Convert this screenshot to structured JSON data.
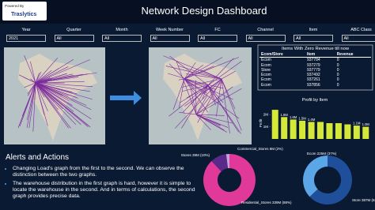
{
  "header": {
    "powered_by": "Powered By",
    "logo": "Traslytics",
    "title": "Network Design Dashboard"
  },
  "filters": [
    {
      "label": "Year",
      "value": "2021"
    },
    {
      "label": "Quarter",
      "value": "All"
    },
    {
      "label": "Month",
      "value": "All"
    },
    {
      "label": "Week Number",
      "value": "All"
    },
    {
      "label": "FC",
      "value": "All"
    },
    {
      "label": "Channel",
      "value": "All"
    },
    {
      "label": "Item",
      "value": "All"
    },
    {
      "label": "ABC Class",
      "value": "All"
    }
  ],
  "zero_revenue_table": {
    "title": "Items With Zero Revenue till now",
    "columns": [
      "Ecom/Store",
      "Item",
      "Revenue"
    ],
    "rows": [
      [
        "Ecom",
        "937784",
        "0"
      ],
      [
        "Ecom",
        "937279",
        "0"
      ],
      [
        "Store",
        "937779",
        "0"
      ],
      [
        "Ecom",
        "937492",
        "0"
      ],
      [
        "Ecom",
        "937261",
        "0"
      ],
      [
        "Ecom",
        "937856",
        "0"
      ]
    ]
  },
  "profit_chart": {
    "type": "bar",
    "title": "Profit by Item",
    "y_label": "Profit",
    "color": "#d4e83a",
    "values": [
      2400000,
      1800000,
      1600000,
      1500000,
      1400000,
      1400000,
      1300000,
      1300000,
      1200000,
      1100000,
      1000000
    ],
    "value_labels": [
      null,
      "1.8M",
      "1.6M",
      "1.5M",
      "1.4M",
      null,
      null,
      null,
      null,
      "1.1M",
      "1.0M"
    ],
    "ylim": [
      0,
      2600000
    ],
    "yticks": [
      {
        "value": 1000000,
        "label": "1M"
      },
      {
        "value": 2000000,
        "label": "2M"
      }
    ]
  },
  "store_donut": {
    "type": "pie",
    "values": [
      88,
      10,
      2
    ],
    "value_labels": [
      "Residential_Stores 339M (88%)",
      "Stores 39M (10%)",
      "Commercial_Stores 8M (2%)"
    ],
    "colors": [
      "#e0399a",
      "#5a2a8a",
      "#c9a0dc"
    ]
  },
  "channel_donut": {
    "type": "pie",
    "values": [
      63,
      37
    ],
    "value_labels": [
      "Store 387M (63%)",
      "Ecom 225M (37%)"
    ],
    "colors": [
      "#1f4e9a",
      "#5aa6e6"
    ]
  },
  "alerts": {
    "title": "Alerts and Actions",
    "items": [
      "Changing Load's graph from the first to the second. We can observe the distinction between the two graphs.",
      "The warehouse distribution in the first graph is hard, however it is simple to locate the warehouse in the second. And in terms of calculations, the second graph provides precise data."
    ]
  }
}
